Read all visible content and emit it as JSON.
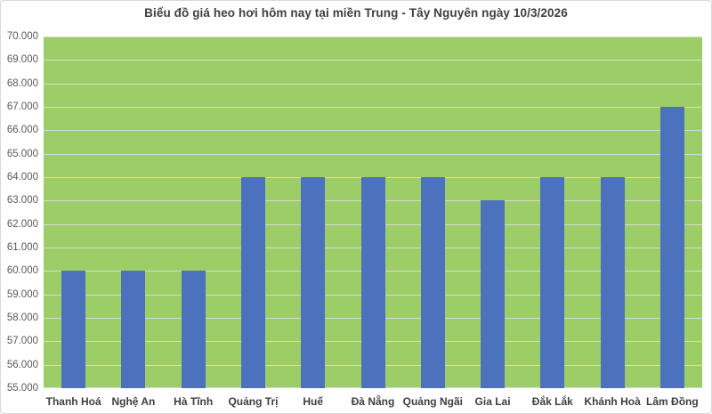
{
  "chart_data": {
    "type": "bar",
    "title": "Biểu đồ giá heo hơi hôm nay tại miền Trung - Tây Nguyên ngày 10/3/2026",
    "categories": [
      "Thanh Hoá",
      "Nghệ An",
      "Hà Tĩnh",
      "Quảng Trị",
      "Huế",
      "Đà Nẵng",
      "Quảng Ngãi",
      "Gia Lai",
      "Đắk Lắk",
      "Khánh Hoà",
      "Lâm Đồng"
    ],
    "values": [
      60000,
      60000,
      60000,
      64000,
      64000,
      64000,
      64000,
      63000,
      64000,
      64000,
      67000
    ],
    "xlabel": "",
    "ylabel": "",
    "ylim": [
      55000,
      70000
    ],
    "ytick_step": 1000,
    "ytick_labels": [
      "55.000",
      "56.000",
      "57.000",
      "58.000",
      "59.000",
      "60.000",
      "61.000",
      "62.000",
      "63.000",
      "64.000",
      "65.000",
      "66.000",
      "67.000",
      "68.000",
      "69.000",
      "70.000"
    ],
    "grid": true,
    "legend": false,
    "colors": {
      "bar": "#4C72BE",
      "plot_bg": "#9CCD66",
      "gridline": "#D9D9D9",
      "title_text": "#3F3F3F",
      "axis_text": "#595959",
      "xtick_text": "#3F3F3F",
      "border": "#D9D9D9",
      "background": "#FFFFFF"
    }
  }
}
